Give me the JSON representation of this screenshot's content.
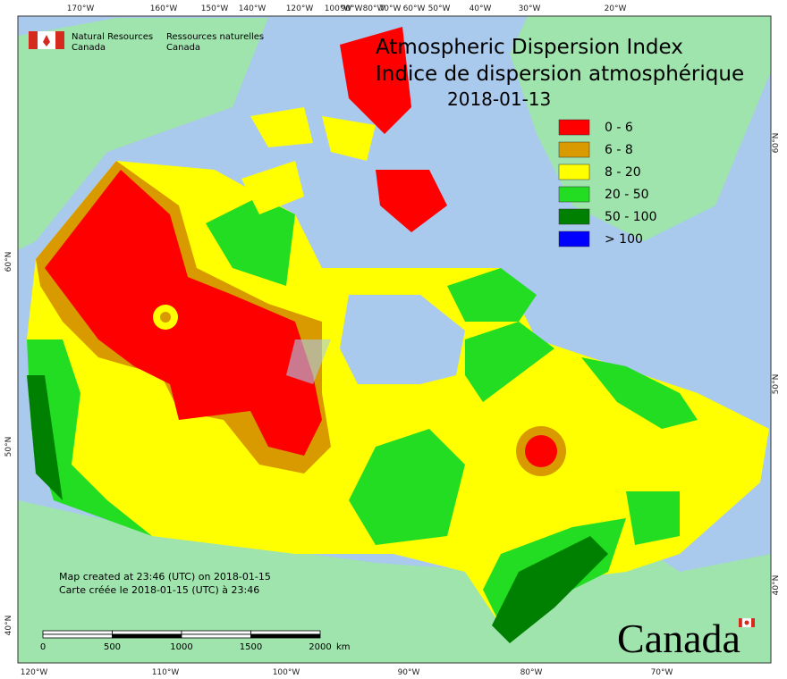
{
  "header": {
    "agency_en": "Natural Resources",
    "agency_en2": "Canada",
    "agency_fr": "Ressources naturelles",
    "agency_fr2": "Canada"
  },
  "title": {
    "en": "Atmospheric Dispersion Index",
    "fr": "Indice de dispersion atmosphérique",
    "date": "2018-01-13"
  },
  "legend": [
    {
      "label": "0 - 6",
      "color": "#ff0000"
    },
    {
      "label": "6 - 8",
      "color": "#d99a00"
    },
    {
      "label": "8 - 20",
      "color": "#ffff00"
    },
    {
      "label": "20 - 50",
      "color": "#22dd22"
    },
    {
      "label": "50 - 100",
      "color": "#008000"
    },
    {
      "label": "> 100",
      "color": "#0000ff"
    }
  ],
  "graticule": {
    "top": [
      "170°W",
      "160°W",
      "150°W",
      "140°W",
      "120°W",
      "100°W",
      "90°W",
      "80°W",
      "70°W",
      "60°W",
      "50°W",
      "40°W",
      "30°W",
      "20°W"
    ],
    "bottom": [
      "120°W",
      "110°W",
      "100°W",
      "90°W",
      "80°W",
      "70°W"
    ],
    "left": [
      "60°N",
      "50°N",
      "40°N"
    ],
    "right": [
      "60°N",
      "50°N",
      "40°N"
    ]
  },
  "notes": [
    "Map created at 23:46 (UTC) on 2018-01-15",
    "Carte créée le 2018-01-15 (UTC) à 23:46"
  ],
  "scale_bar": {
    "ticks": [
      0,
      500,
      1000,
      1500,
      2000
    ],
    "unit": "km"
  },
  "wordmark": "Canada"
}
